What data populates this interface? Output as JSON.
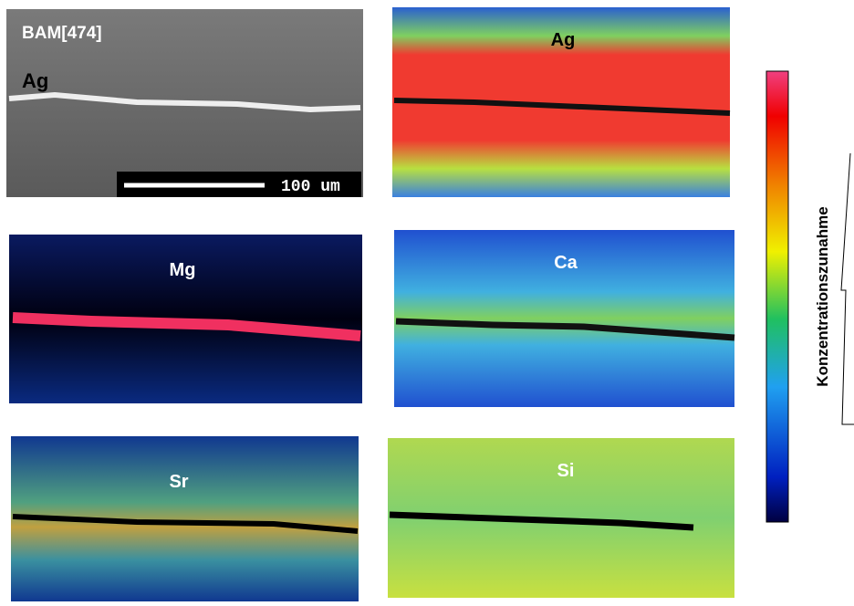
{
  "sem": {
    "sample": "BAM[474]",
    "label": "Ag",
    "scale": "100 um"
  },
  "maps": [
    {
      "label": "Ag"
    },
    {
      "label": "Mg"
    },
    {
      "label": "Ca"
    },
    {
      "label": "Sr"
    },
    {
      "label": "Si"
    }
  ],
  "colorbar": {
    "label": "Konzentrationszunahme"
  }
}
